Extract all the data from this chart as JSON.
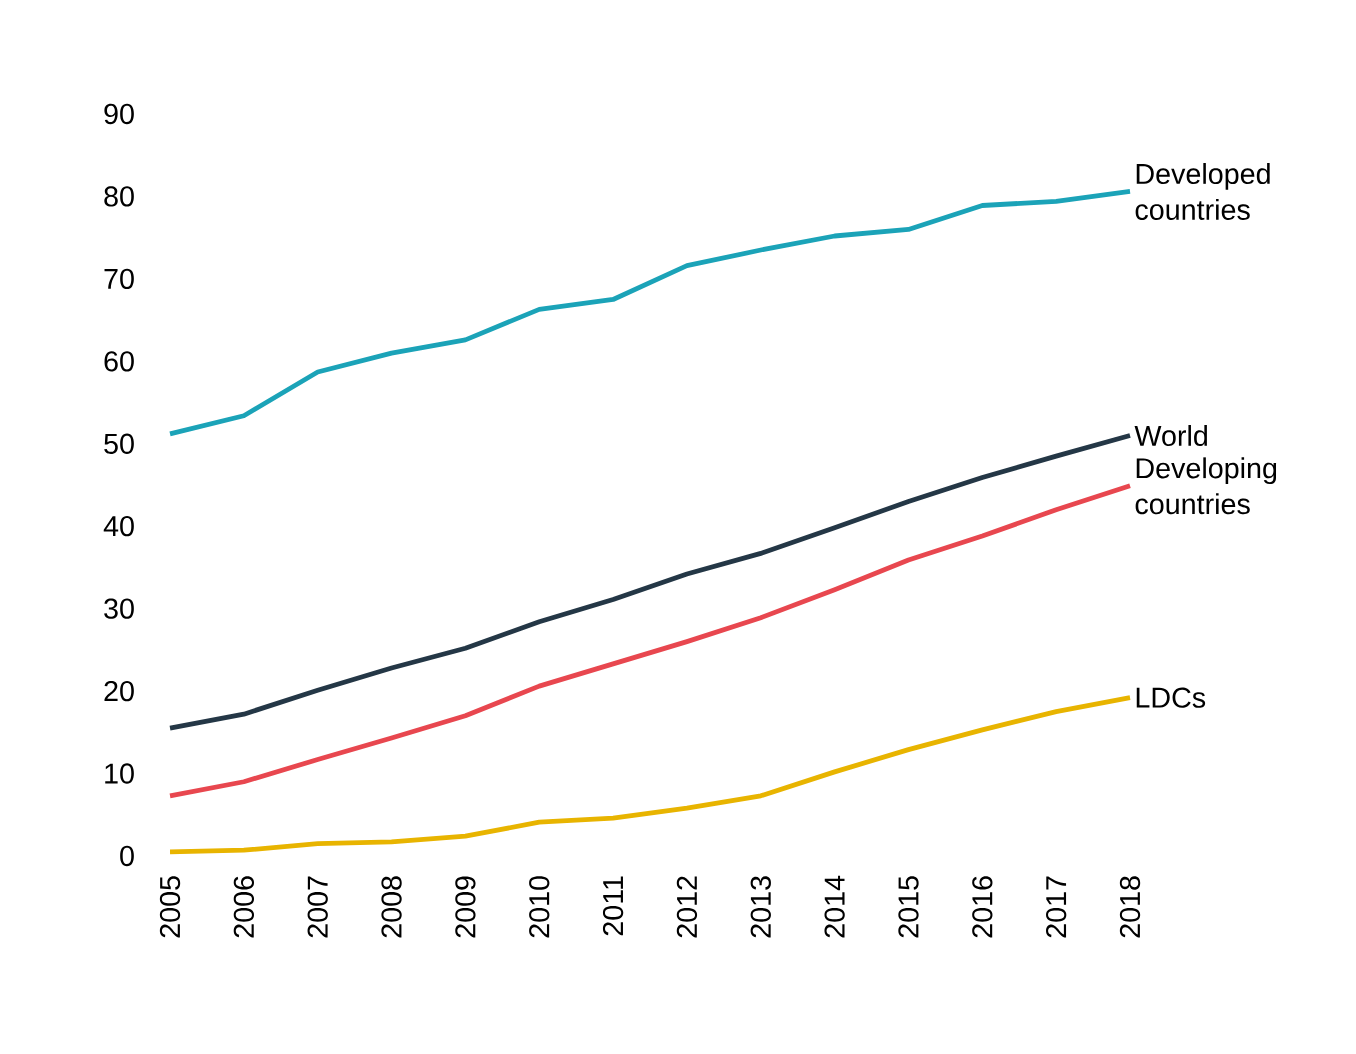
{
  "chart_data": {
    "type": "line",
    "categories": [
      "2005",
      "2006",
      "2007",
      "2008",
      "2009",
      "2010",
      "2011",
      "2012",
      "2013",
      "2014",
      "2015",
      "2016",
      "2017",
      "2018"
    ],
    "ylim": [
      0,
      90
    ],
    "yticks": [
      0,
      10,
      20,
      30,
      40,
      50,
      60,
      70,
      80,
      90
    ],
    "grid": false,
    "marker": "none",
    "line_style": "solid",
    "series": [
      {
        "name": "Developed countries",
        "color": "#1ba3b8",
        "values": [
          51.2,
          53.4,
          58.7,
          61,
          62.6,
          66.3,
          67.5,
          71.6,
          73.5,
          75.2,
          76,
          78.9,
          79.4,
          80.6
        ]
      },
      {
        "name": "World",
        "color": "#243746",
        "values": [
          15.5,
          17.2,
          20.1,
          22.8,
          25.2,
          28.4,
          31.1,
          34.2,
          36.7,
          39.8,
          43,
          45.9,
          48.5,
          51
        ]
      },
      {
        "name": "Developing countries",
        "color": "#e8474f",
        "values": [
          7.3,
          9,
          11.7,
          14.3,
          17,
          20.6,
          23.3,
          26,
          28.9,
          32.3,
          35.9,
          38.8,
          42,
          44.9
        ]
      },
      {
        "name": "LDCs",
        "color": "#e8b400",
        "values": [
          0.5,
          0.7,
          1.5,
          1.7,
          2.4,
          4.1,
          4.6,
          5.8,
          7.3,
          10.2,
          12.9,
          15.3,
          17.5,
          19.2
        ]
      }
    ]
  }
}
